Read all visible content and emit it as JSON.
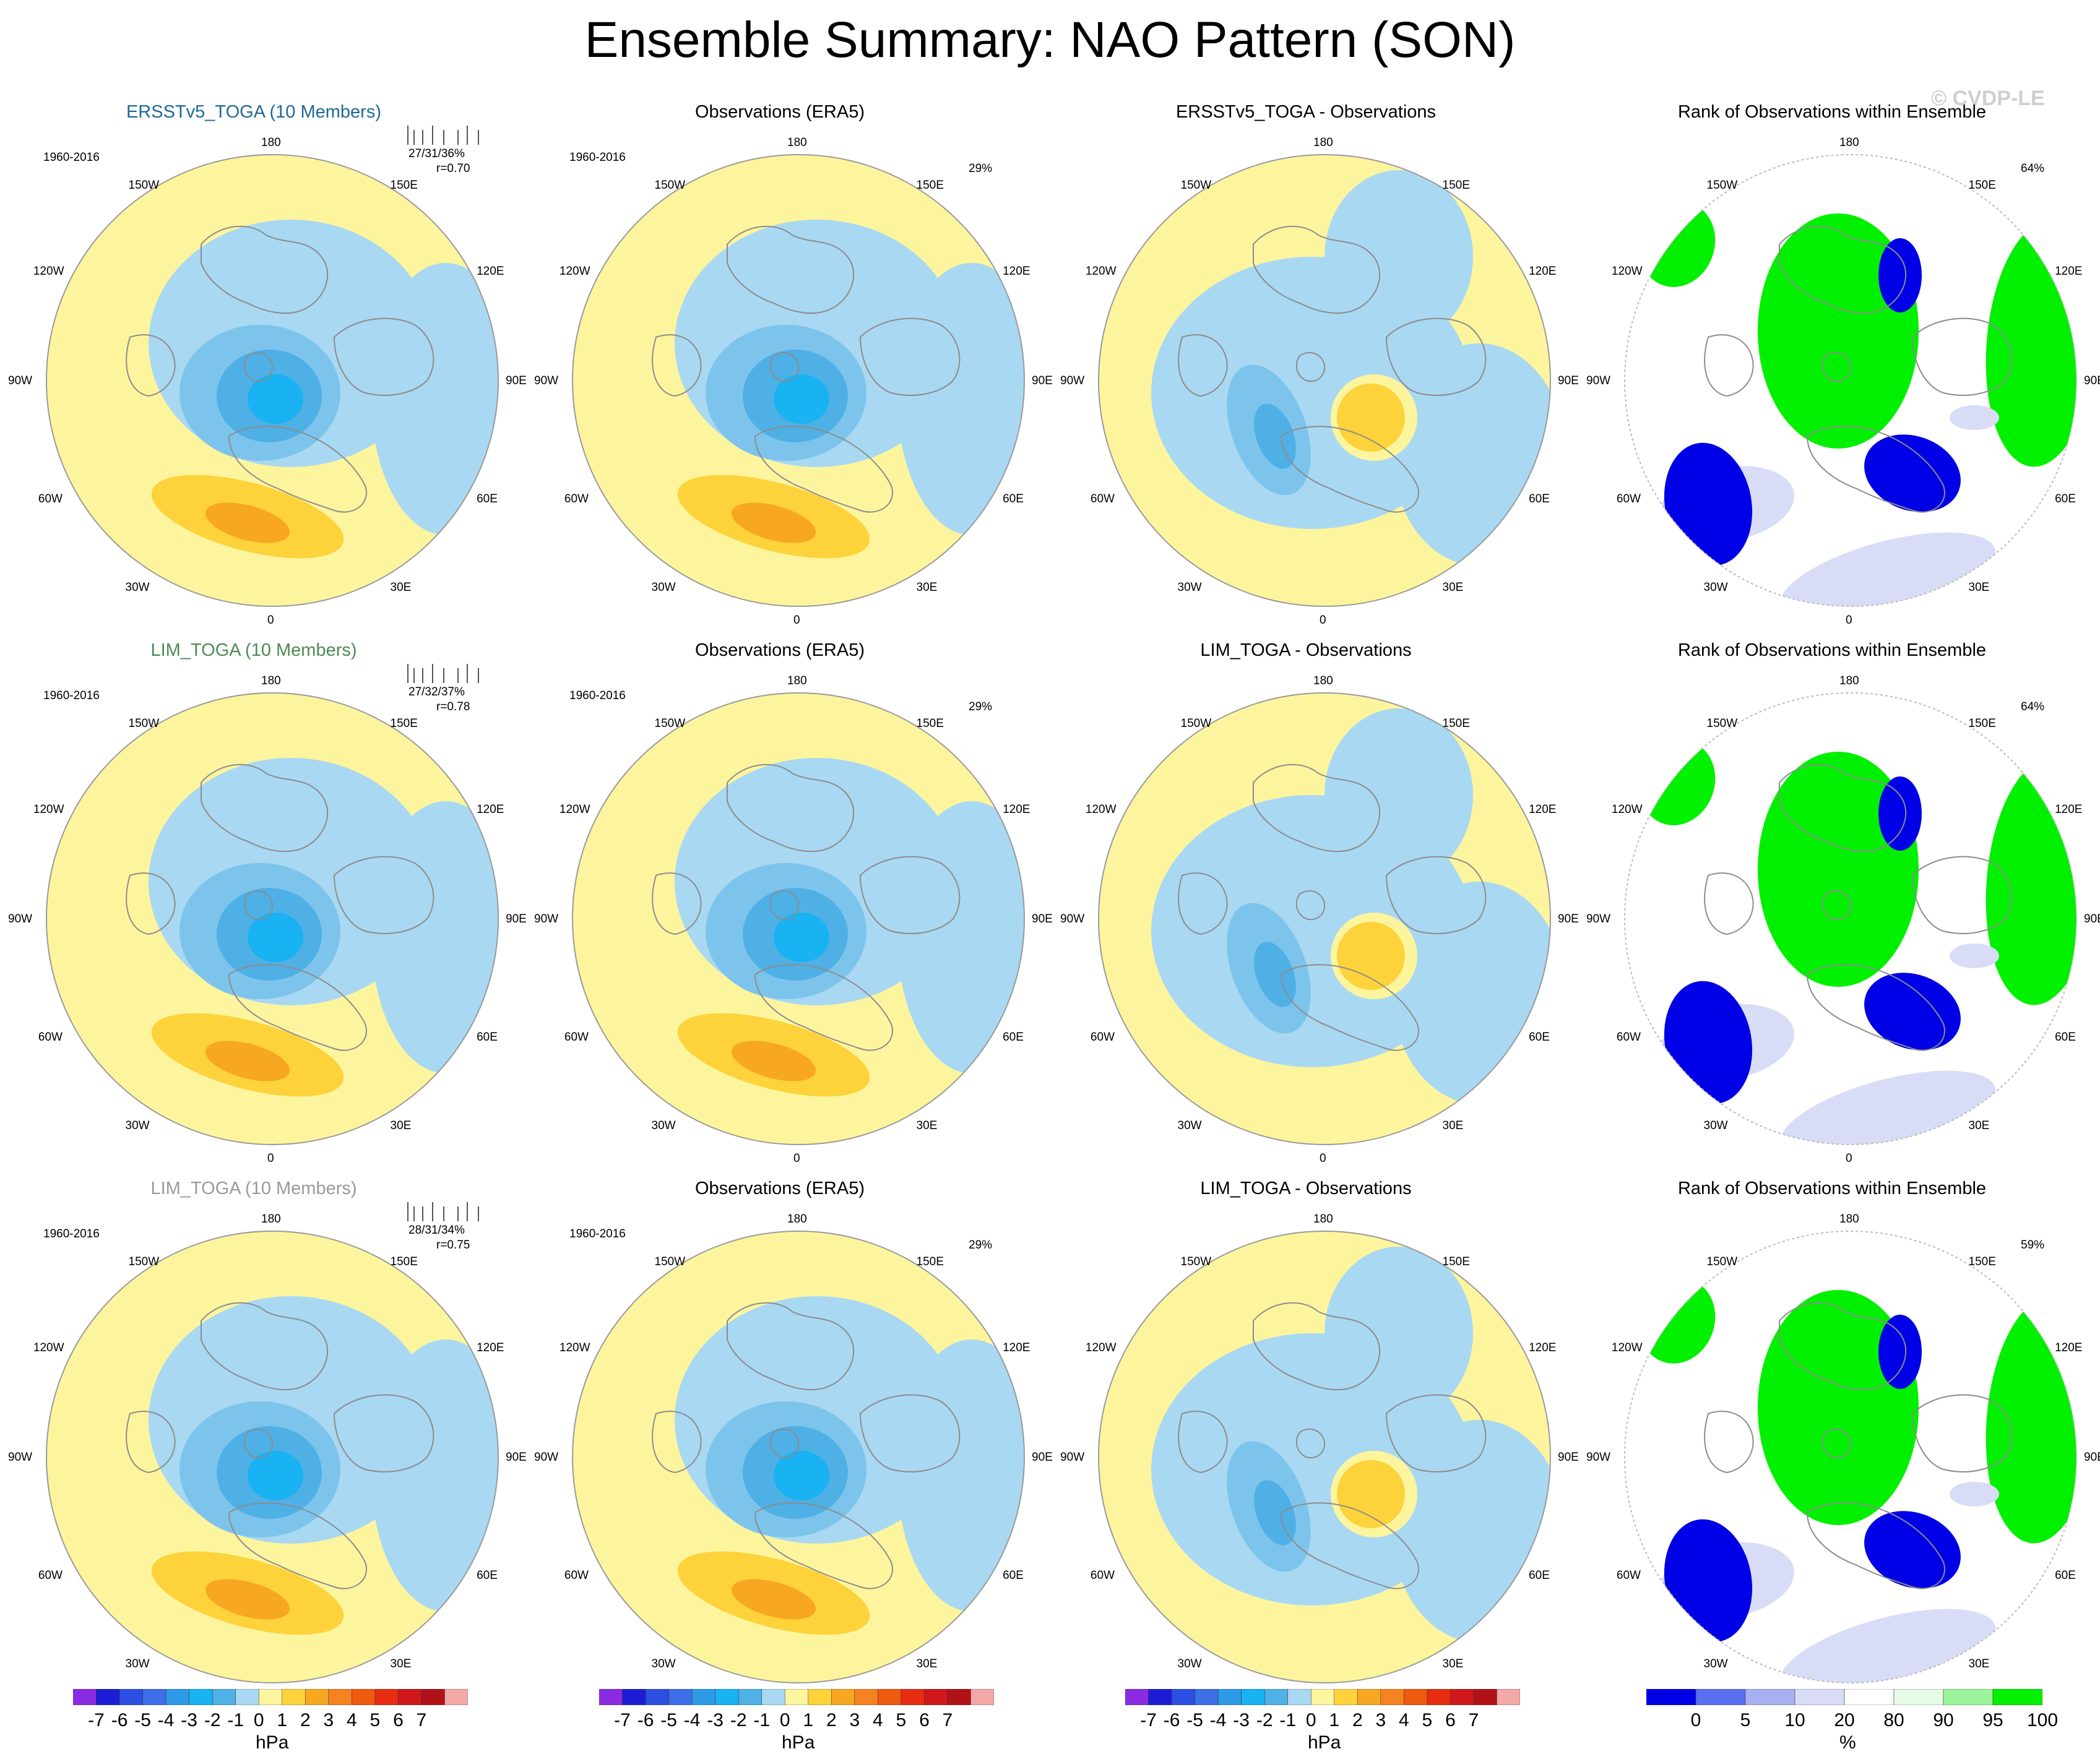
{
  "title": "Ensemble Summary: NAO Pattern (SON)",
  "watermark": "© CVDP-LE",
  "colors": {
    "light_yellow": "#fdf59e",
    "light_blue": "#a9d8f2",
    "blue1": "#7dc4ec",
    "blue2": "#4fb0e6",
    "blue3": "#19b2f2",
    "orange1": "#fdd23a",
    "orange2": "#f7a722",
    "green": "#00f000",
    "dark_blue": "#0000e6",
    "pale_blue": "#d8dcf7"
  },
  "rows": [
    {
      "ensemble": {
        "title": "ERSSTv5_TOGA (10 Members)",
        "years": "1960-2016",
        "pct": "27/31/36%",
        "r": "r=0.70"
      },
      "obs": {
        "title": "Observations (ERA5)",
        "years": "1960-2016",
        "pct": "29%"
      },
      "diff": {
        "title": "ERSSTv5_TOGA - Observations"
      },
      "rank": {
        "title": "Rank of Observations within Ensemble",
        "pct": "64%"
      }
    },
    {
      "ensemble": {
        "title": "LIM_TOGA (10 Members)",
        "years": "1960-2016",
        "pct": "27/32/37%",
        "r": "r=0.78"
      },
      "obs": {
        "title": "Observations (ERA5)",
        "years": "1960-2016",
        "pct": "29%"
      },
      "diff": {
        "title": "LIM_TOGA - Observations"
      },
      "rank": {
        "title": "Rank of Observations within Ensemble",
        "pct": "64%"
      }
    },
    {
      "ensemble": {
        "title": "LIM_TOGA (10 Members)",
        "years": "1960-2016",
        "pct": "28/31/34%",
        "r": "r=0.75"
      },
      "obs": {
        "title": "Observations (ERA5)",
        "years": "1960-2016",
        "pct": "29%"
      },
      "diff": {
        "title": "LIM_TOGA - Observations"
      },
      "rank": {
        "title": "Rank of Observations within Ensemble",
        "pct": "59%"
      }
    }
  ],
  "map_labels": {
    "top": "180",
    "bottom": "0",
    "left": "90W",
    "right": "90E",
    "tl1": "150W",
    "tl2": "120W",
    "tr1": "150E",
    "tr2": "120E",
    "bl1": "60W",
    "bl2": "30W",
    "br1": "60E",
    "br2": "30E"
  },
  "chart_data": [
    {
      "type": "heatmap",
      "title": "NAO Pattern colorbar",
      "unit": "hPa",
      "tick_labels": [
        "-7",
        "-6",
        "-5",
        "-4",
        "-3",
        "-2",
        "-1",
        "0",
        "1",
        "2",
        "3",
        "4",
        "5",
        "6",
        "7"
      ],
      "colors": [
        "#8a2be2",
        "#1c1cd6",
        "#2b4fe0",
        "#3d6fe6",
        "#2f9be8",
        "#19b2f2",
        "#4fb0e6",
        "#a9d8f2",
        "#fdf59e",
        "#fdd23a",
        "#f7a722",
        "#f58220",
        "#f05a10",
        "#e62d10",
        "#d0181c",
        "#b01218",
        "#f4a8a8"
      ]
    },
    {
      "type": "heatmap",
      "title": "Rank of Observations within Ensemble colorbar",
      "unit": "%",
      "tick_labels": [
        "0",
        "5",
        "10",
        "20",
        "80",
        "90",
        "95",
        "100"
      ],
      "colors": [
        "#0000e6",
        "#5a6ef0",
        "#a8b0f2",
        "#d8dcf7",
        "#ffffff",
        "#e6fbe6",
        "#9af59a",
        "#00f000"
      ]
    }
  ]
}
